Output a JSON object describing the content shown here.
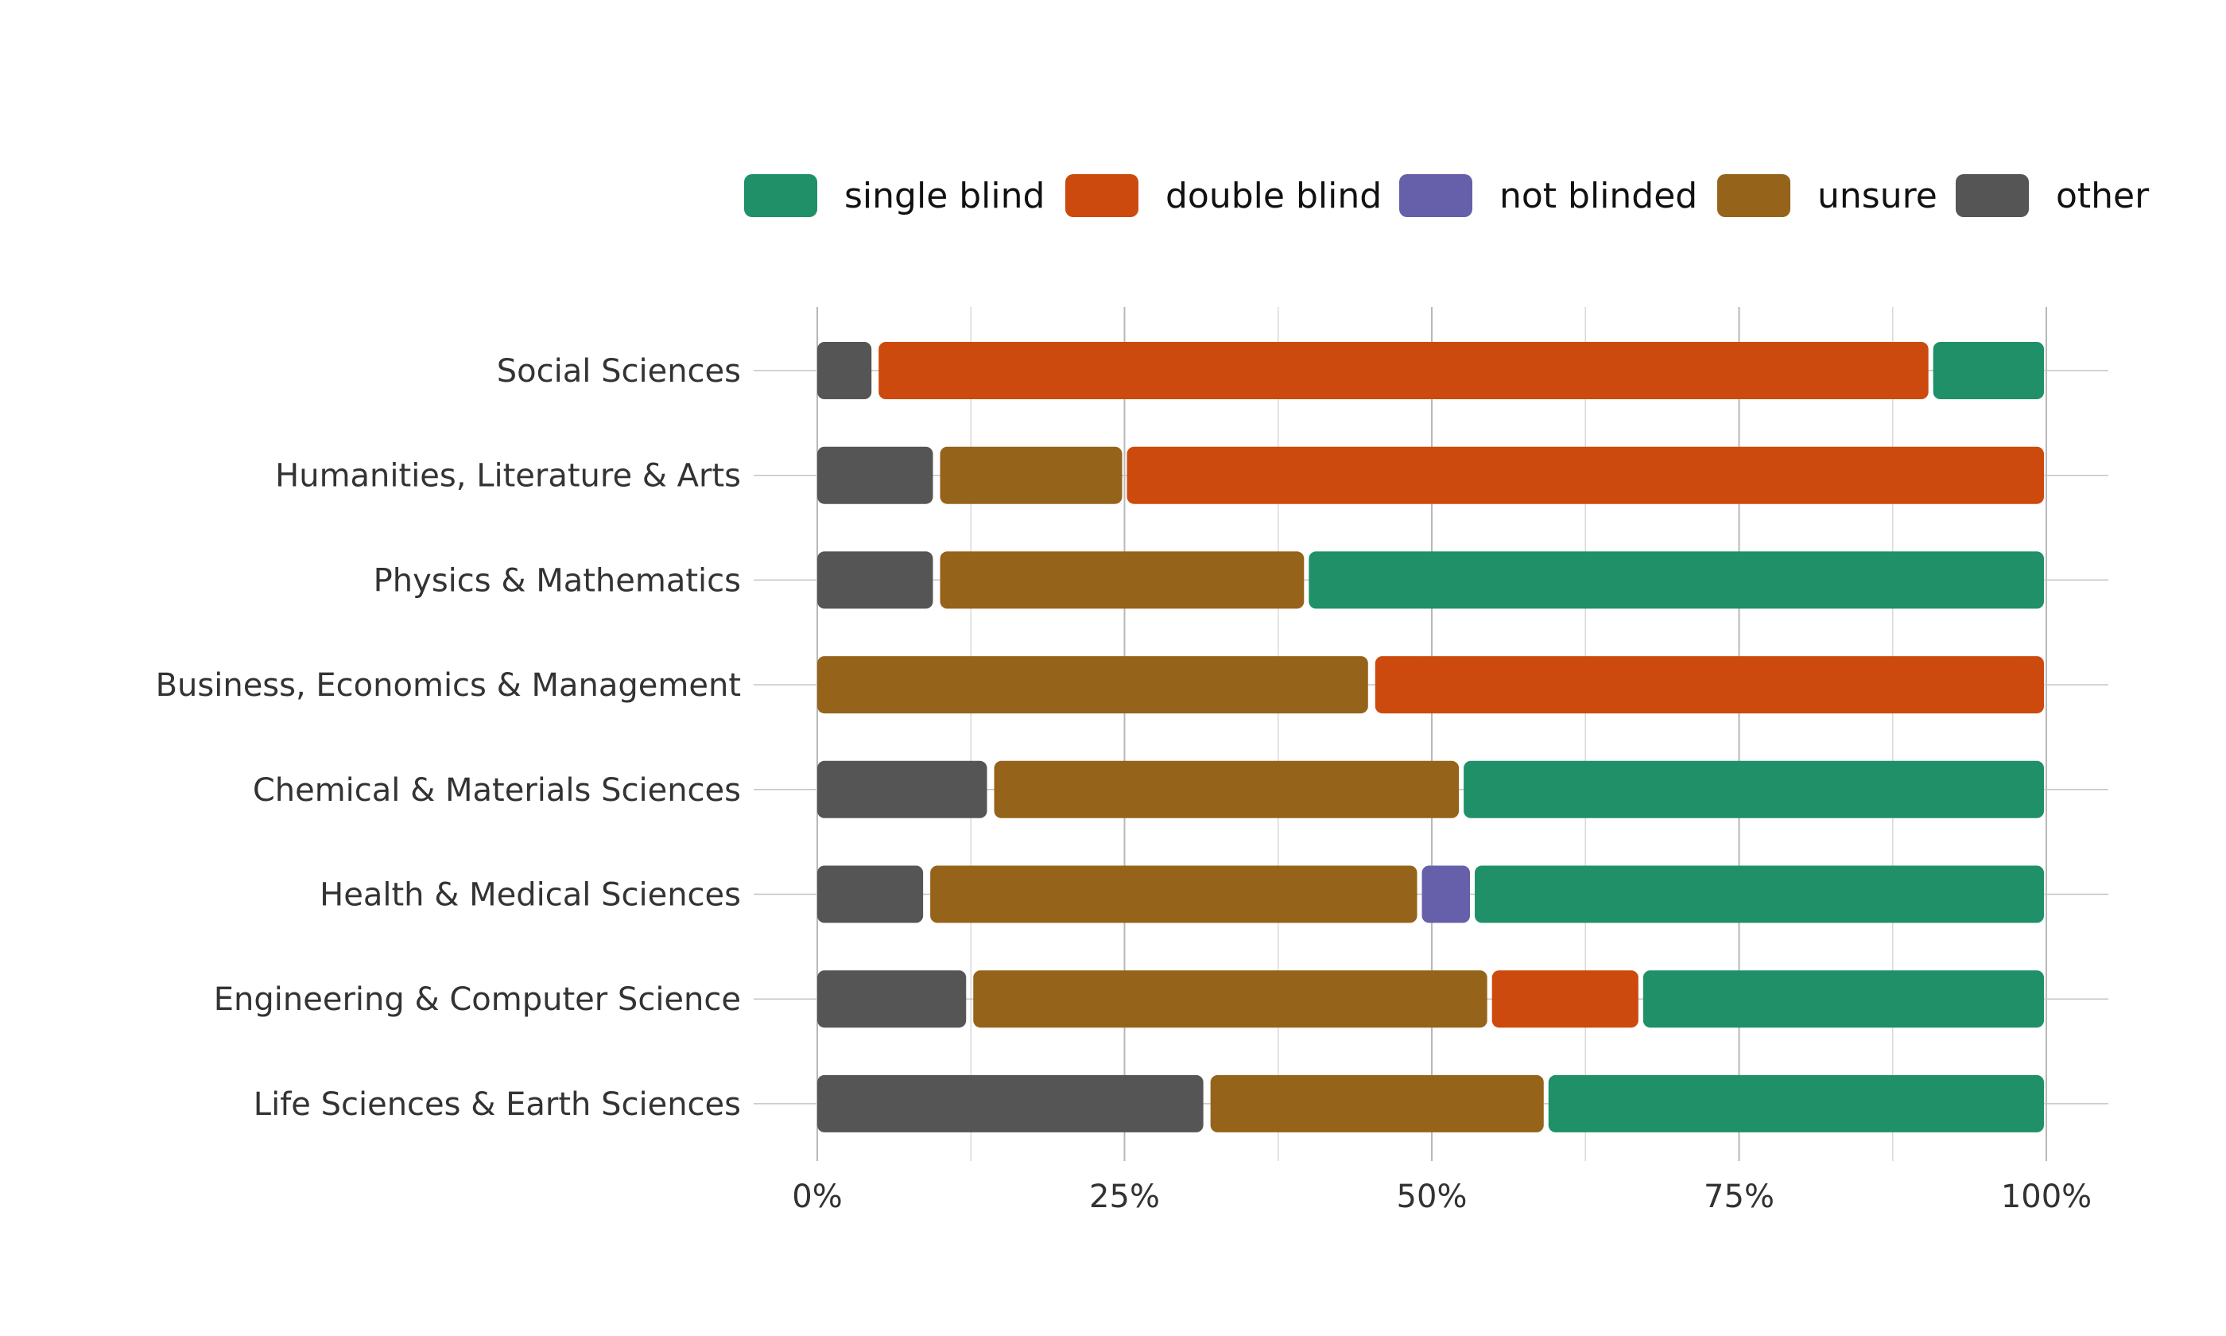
{
  "chart_data": {
    "type": "bar",
    "orientation": "horizontal",
    "stacked": true,
    "normalized": true,
    "title": "",
    "xlabel": "",
    "ylabel": "",
    "xlim": [
      0,
      100
    ],
    "x_ticks": [
      "0%",
      "25%",
      "50%",
      "75%",
      "100%"
    ],
    "grid": true,
    "legend_position": "top-right",
    "categories": [
      "Social Sciences",
      "Humanities, Literature & Arts",
      "Physics & Mathematics",
      "Business, Economics & Management",
      "Chemical & Materials Sciences",
      "Health & Medical Sciences",
      "Engineering & Computer Science",
      "Life Sciences & Earth Sciences"
    ],
    "series": [
      {
        "name": "other",
        "color": "#555555",
        "values": [
          4.8,
          9.8,
          9.8,
          0,
          14.2,
          9.0,
          12.5,
          31.8
        ]
      },
      {
        "name": "unsure",
        "color": "#96631A",
        "values": [
          0,
          15.2,
          30.0,
          45.2,
          38.2,
          40.0,
          42.2,
          27.5
        ]
      },
      {
        "name": "not blinded",
        "color": "#665FAA",
        "values": [
          0,
          0,
          0,
          0,
          0,
          4.3,
          0,
          0
        ]
      },
      {
        "name": "double blind",
        "color": "#CC4A0D",
        "values": [
          85.8,
          75.0,
          0,
          54.8,
          0,
          0,
          12.3,
          0
        ]
      },
      {
        "name": "single blind",
        "color": "#1F9068",
        "values": [
          9.4,
          0,
          60.2,
          0,
          47.6,
          46.7,
          33.0,
          40.7
        ]
      }
    ],
    "legend_order": [
      "single blind",
      "double blind",
      "not blinded",
      "unsure",
      "other"
    ]
  }
}
